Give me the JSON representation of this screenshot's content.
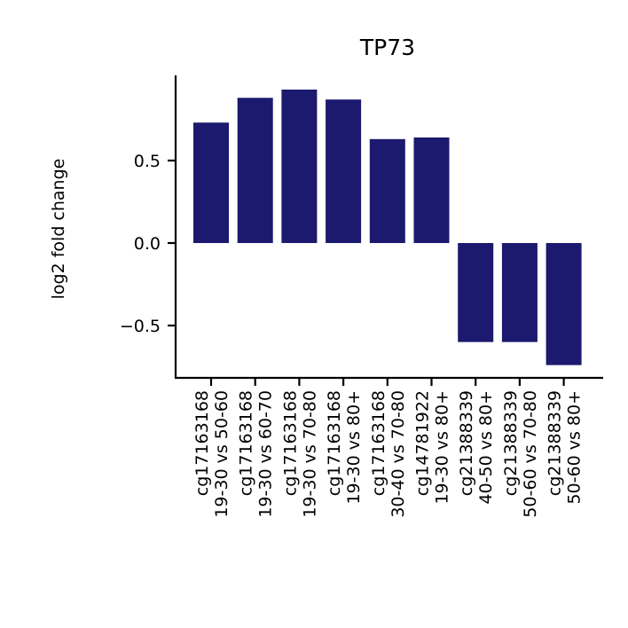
{
  "chart_data": {
    "type": "bar",
    "title": "TP73",
    "xlabel": "",
    "ylabel": "log2 fold change",
    "ylim": [
      -0.8,
      0.95
    ],
    "yticks": [
      -0.5,
      0.0,
      0.5
    ],
    "ytick_labels": [
      "−0.5",
      "0.0",
      "0.5"
    ],
    "categories": [
      "cg17163168\n19-30 vs 50-60",
      "cg17163168\n19-30 vs 60-70",
      "cg17163168\n19-30 vs 70-80",
      "cg17163168\n19-30 vs 80+",
      "cg17163168\n30-40 vs 70-80",
      "cg14781922\n19-30 vs 80+",
      "cg21388339\n40-50 vs 80+",
      "cg21388339\n50-60 vs 70-80",
      "cg21388339\n50-60 vs 80+"
    ],
    "values": [
      0.73,
      0.88,
      0.93,
      0.87,
      0.63,
      0.64,
      -0.6,
      -0.6,
      -0.74
    ],
    "bar_color": "#1b1a6e",
    "grid": false,
    "legend": "none"
  }
}
